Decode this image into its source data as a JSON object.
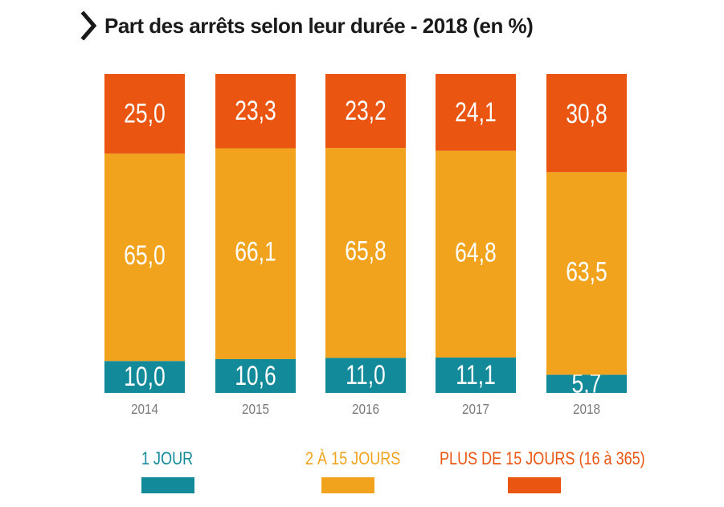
{
  "title": "Part des arrêts selon leur durée - 2018 (en %)",
  "colors": {
    "one_day": "#138a9a",
    "two_to_fifteen": "#f2a31e",
    "over_fifteen": "#ea5611",
    "value_text": "#ffffff",
    "year_text": "#7a7a7a"
  },
  "legend": [
    {
      "label": "1 JOUR",
      "color": "#138a9a"
    },
    {
      "label": "2 À 15 JOURS",
      "color": "#f2a31e"
    },
    {
      "label": "PLUS DE 15 JOURS (16 à 365)",
      "color": "#ea5611"
    }
  ],
  "chart_data": {
    "type": "bar",
    "stacked": true,
    "categories": [
      "2014",
      "2015",
      "2016",
      "2017",
      "2018"
    ],
    "series": [
      {
        "name": "1 JOUR",
        "values": [
          10.0,
          10.6,
          11.0,
          11.1,
          5.7
        ],
        "labels": [
          "10,0",
          "10,6",
          "11,0",
          "11,1",
          "5,7"
        ],
        "color": "#138a9a"
      },
      {
        "name": "2 À 15 JOURS",
        "values": [
          65.0,
          66.1,
          65.8,
          64.8,
          63.5
        ],
        "labels": [
          "65,0",
          "66,1",
          "65,8",
          "64,8",
          "63,5"
        ],
        "color": "#f2a31e"
      },
      {
        "name": "PLUS DE 15 JOURS (16 à 365)",
        "values": [
          25.0,
          23.3,
          23.2,
          24.1,
          30.8
        ],
        "labels": [
          "25,0",
          "23,3",
          "23,2",
          "24,1",
          "30,8"
        ],
        "color": "#ea5611"
      }
    ],
    "ylim": [
      0,
      100
    ],
    "grid": false
  }
}
